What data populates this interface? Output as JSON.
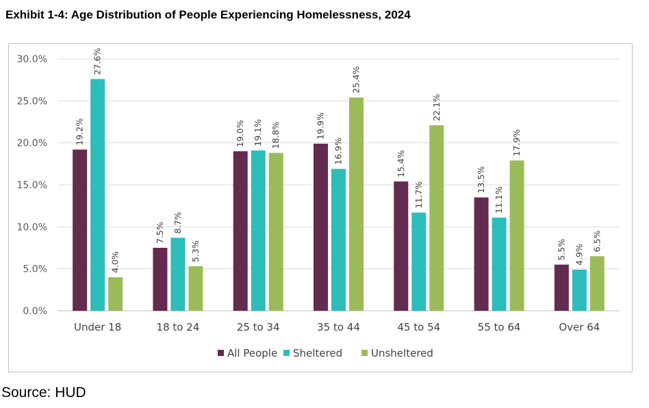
{
  "title": "Exhibit 1-4: Age Distribution of People Experiencing Homelessness, 2024",
  "source": "Source: HUD",
  "chart_data": {
    "type": "bar",
    "title": "",
    "xlabel": "",
    "ylabel": "",
    "ylim": [
      0,
      30
    ],
    "y_tick_labels": [
      "0.0%",
      "5.0%",
      "10.0%",
      "15.0%",
      "20.0%",
      "25.0%",
      "30.0%"
    ],
    "y_ticks": [
      0,
      5,
      10,
      15,
      20,
      25,
      30
    ],
    "grid": true,
    "legend_position": "bottom",
    "categories": [
      "Under 18",
      "18 to 24",
      "25 to 34",
      "35 to 44",
      "45 to 54",
      "55 to 64",
      "Over 64"
    ],
    "series": [
      {
        "name": "All People",
        "color": "#632B4F",
        "values": [
          19.2,
          7.5,
          19.0,
          19.9,
          15.4,
          13.5,
          5.5
        ],
        "labels": [
          "19.2%",
          "7.5%",
          "19.0%",
          "19.9%",
          "15.4%",
          "13.5%",
          "5.5%"
        ]
      },
      {
        "name": "Sheltered",
        "color": "#2DBDBA",
        "values": [
          27.6,
          8.7,
          19.1,
          16.9,
          11.7,
          11.1,
          4.9
        ],
        "labels": [
          "27.6%",
          "8.7%",
          "19.1%",
          "16.9%",
          "11.7%",
          "11.1%",
          "4.9%"
        ]
      },
      {
        "name": "Unsheltered",
        "color": "#9BBB59",
        "values": [
          4.0,
          5.3,
          18.8,
          25.4,
          22.1,
          17.9,
          6.5
        ],
        "labels": [
          "4.0%",
          "5.3%",
          "18.8%",
          "25.4%",
          "22.1%",
          "17.9%",
          "6.5%"
        ]
      }
    ]
  }
}
